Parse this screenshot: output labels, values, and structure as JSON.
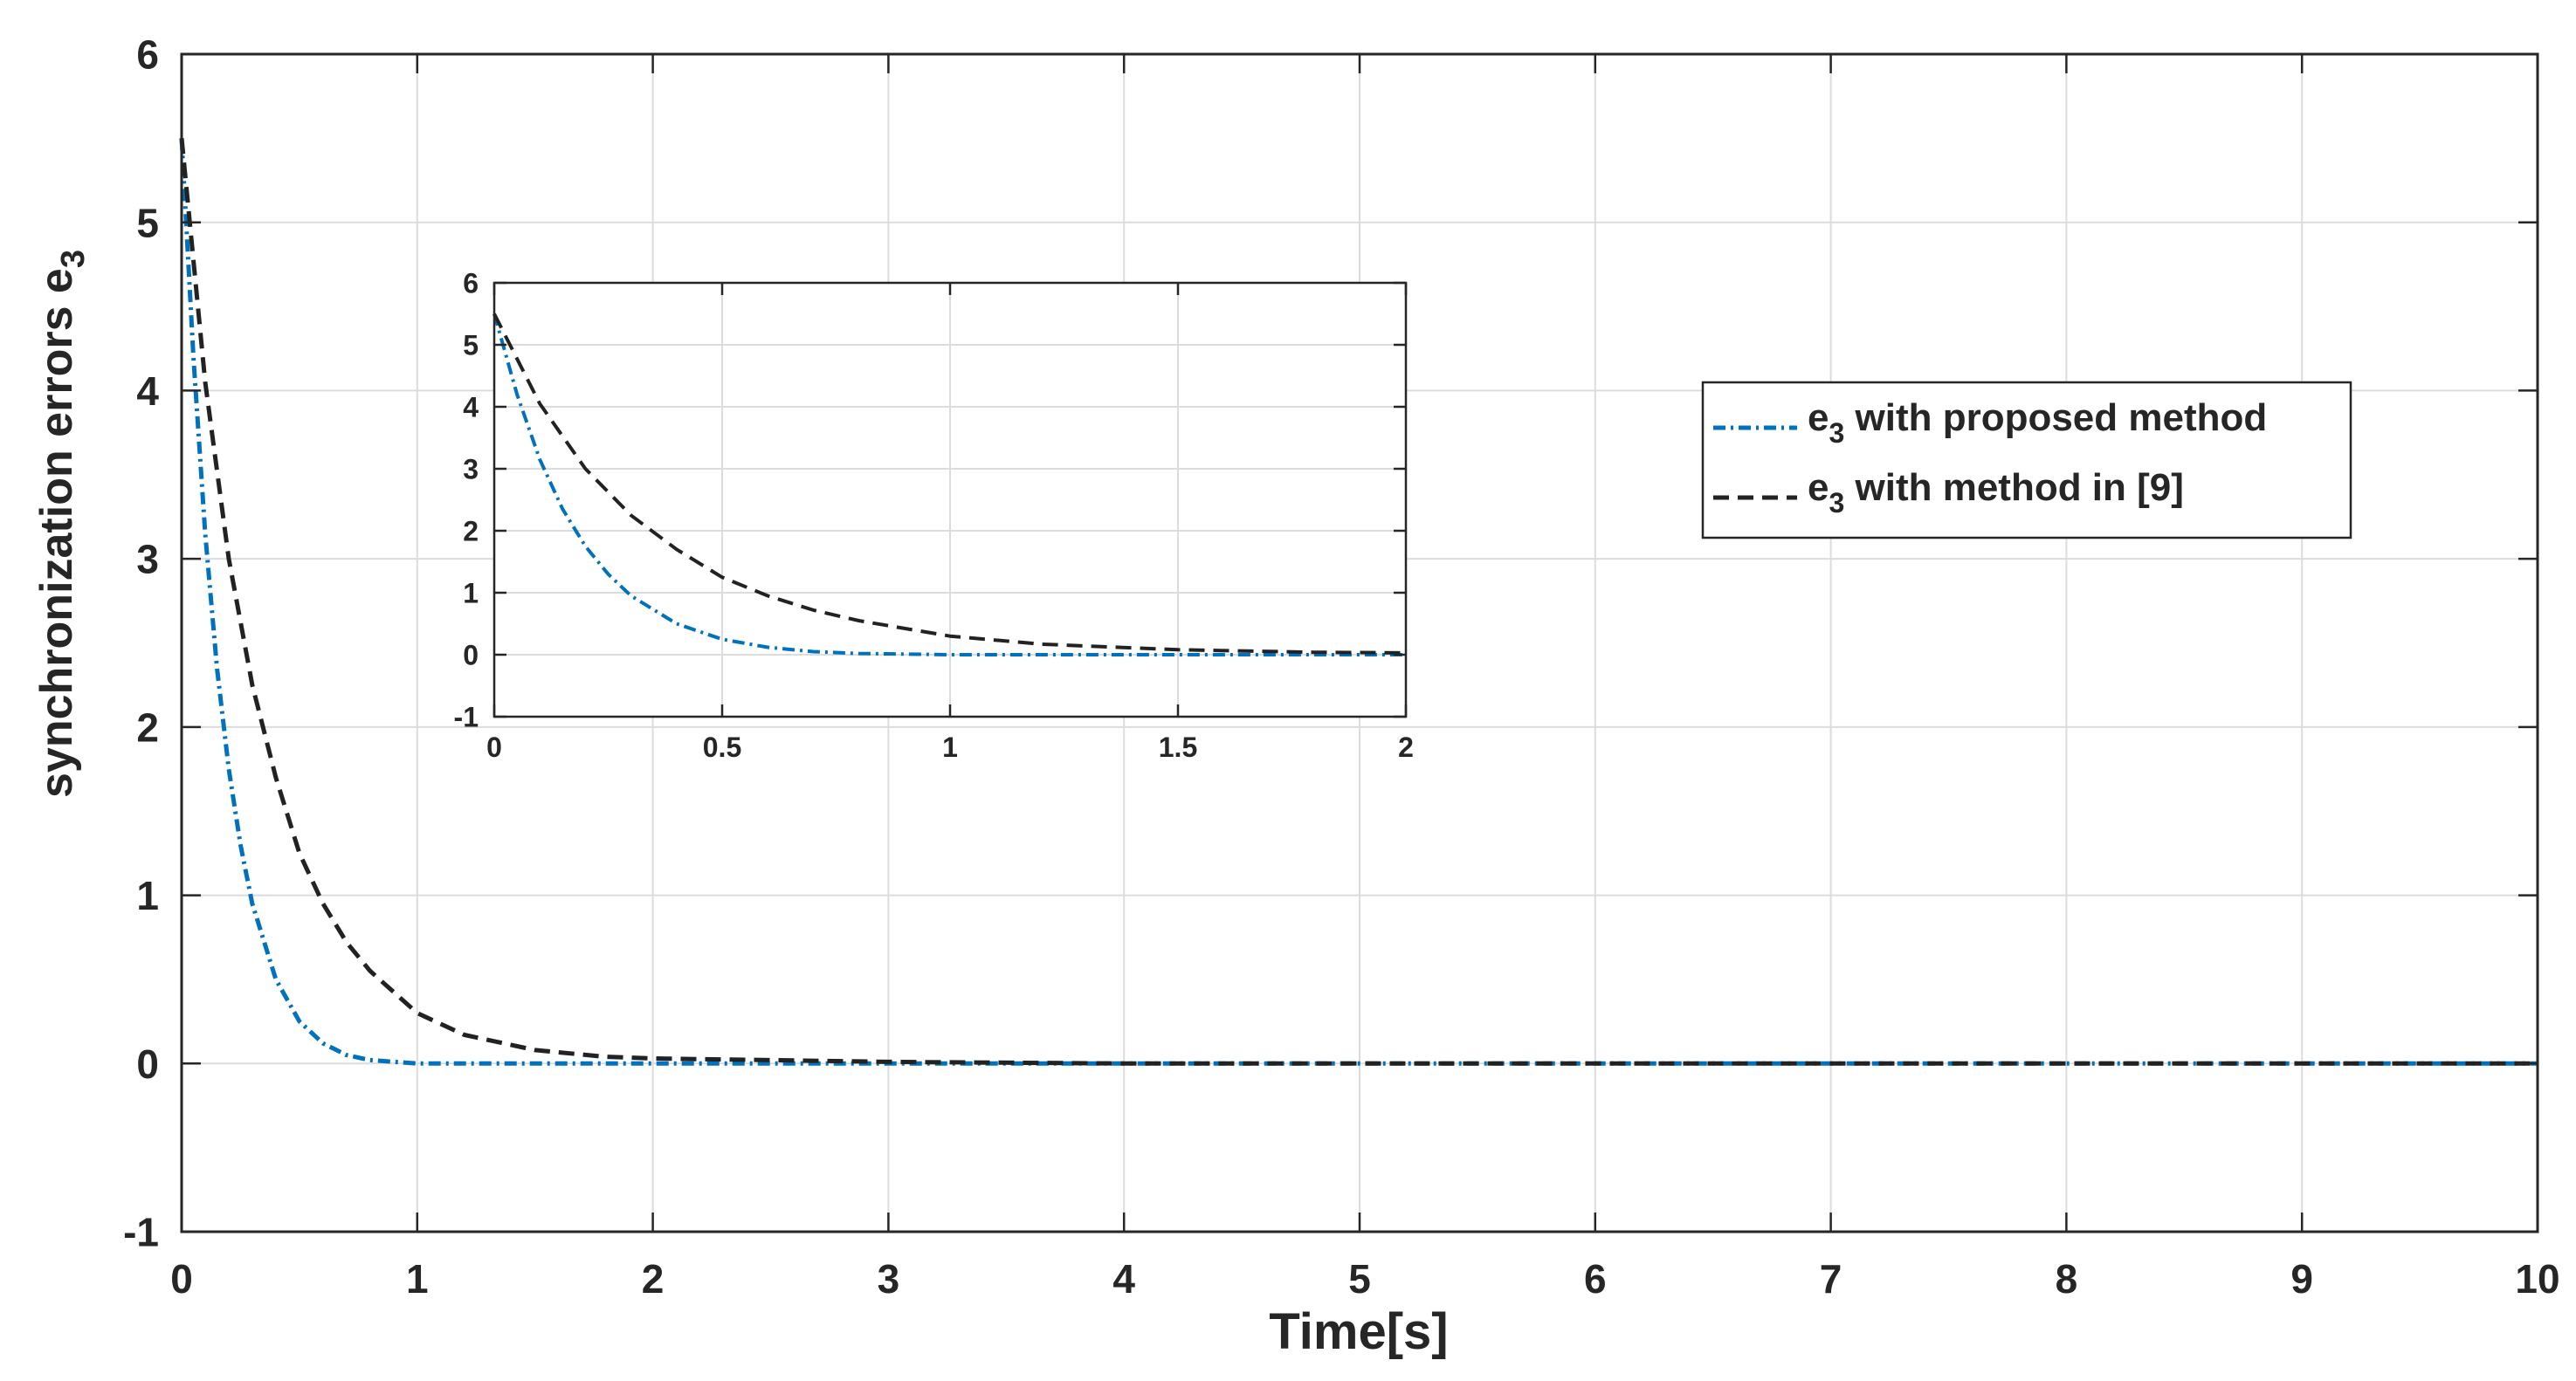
{
  "chart_data": [
    {
      "type": "line",
      "xlabel": "Time[s]",
      "ylabel": "synchronization errors  e",
      "ylabel_subscript": "3",
      "xlim": [
        0,
        10
      ],
      "ylim": [
        -1,
        6
      ],
      "xticks": [
        0,
        1,
        2,
        3,
        4,
        5,
        6,
        7,
        8,
        9,
        10
      ],
      "yticks": [
        -1,
        0,
        1,
        2,
        3,
        4,
        5,
        6
      ],
      "grid": true,
      "legend_position": "upper-right",
      "series": [
        {
          "name": "e3 with proposed method",
          "legend_main": "e",
          "legend_sub": "3",
          "legend_rest": " with proposed method",
          "color": "#0072BD",
          "style": "dash-dot",
          "x": [
            0,
            0.05,
            0.1,
            0.15,
            0.2,
            0.25,
            0.3,
            0.4,
            0.5,
            0.6,
            0.7,
            0.8,
            1,
            1.5,
            2,
            3,
            4,
            5,
            6,
            7,
            8,
            9,
            10
          ],
          "y": [
            5.5,
            4.2,
            3.15,
            2.35,
            1.75,
            1.3,
            0.95,
            0.5,
            0.25,
            0.12,
            0.05,
            0.02,
            0.0,
            0.0,
            0.0,
            0.0,
            0.0,
            0.0,
            0.0,
            0.0,
            0.0,
            0.0,
            0.0
          ]
        },
        {
          "name": "e3 with method in [9]",
          "legend_main": "e",
          "legend_sub": "3",
          "legend_rest": " with method in [9]",
          "color": "#222222",
          "style": "dashed",
          "x": [
            0,
            0.1,
            0.2,
            0.3,
            0.4,
            0.5,
            0.6,
            0.7,
            0.8,
            1.0,
            1.2,
            1.5,
            1.8,
            2.0,
            2.5,
            3,
            4,
            5,
            6,
            7,
            8,
            9,
            10
          ],
          "y": [
            5.5,
            4.05,
            3.0,
            2.25,
            1.7,
            1.25,
            0.95,
            0.72,
            0.55,
            0.3,
            0.17,
            0.08,
            0.04,
            0.03,
            0.02,
            0.01,
            0.0,
            0.0,
            0.0,
            0.0,
            0.0,
            0.0,
            0.0
          ]
        }
      ]
    },
    {
      "type": "line",
      "role": "inset",
      "xlim": [
        0,
        2
      ],
      "ylim": [
        -1,
        6
      ],
      "xticks": [
        0,
        0.5,
        1,
        1.5,
        2
      ],
      "yticks": [
        -1,
        0,
        1,
        2,
        3,
        4,
        5,
        6
      ],
      "grid": true,
      "series": [
        {
          "color": "#0072BD",
          "style": "dash-dot",
          "x": [
            0,
            0.05,
            0.1,
            0.15,
            0.2,
            0.25,
            0.3,
            0.4,
            0.5,
            0.6,
            0.7,
            0.8,
            1.0,
            1.5,
            2.0
          ],
          "y": [
            5.5,
            4.2,
            3.15,
            2.35,
            1.75,
            1.3,
            0.95,
            0.5,
            0.25,
            0.12,
            0.05,
            0.02,
            0.0,
            0.0,
            0.0
          ]
        },
        {
          "color": "#222222",
          "style": "dashed",
          "x": [
            0,
            0.1,
            0.2,
            0.3,
            0.4,
            0.5,
            0.6,
            0.7,
            0.8,
            1.0,
            1.2,
            1.5,
            1.8,
            2.0
          ],
          "y": [
            5.5,
            4.05,
            3.0,
            2.25,
            1.7,
            1.25,
            0.95,
            0.72,
            0.55,
            0.3,
            0.17,
            0.08,
            0.04,
            0.03
          ]
        }
      ]
    }
  ]
}
